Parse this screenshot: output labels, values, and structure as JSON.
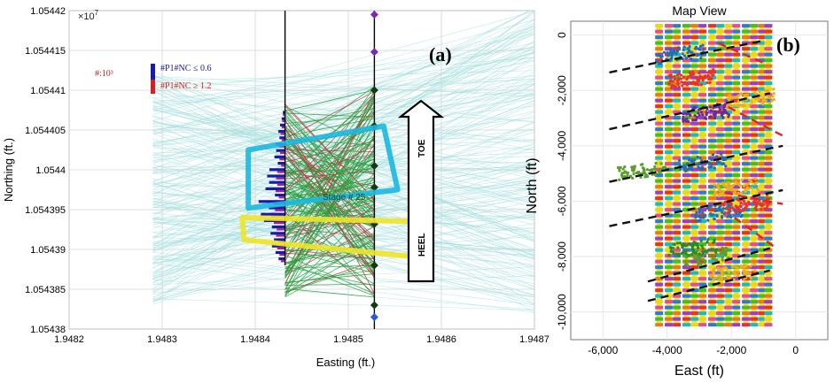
{
  "chart_data": [
    {
      "type": "scatter",
      "panel_label": "(a)",
      "title": "",
      "xlabel": "Easting (ft.)",
      "ylabel": "Northing (ft.)",
      "x_ticks": [
        "1.9482",
        "1.9483",
        "1.9484",
        "1.9485",
        "1.9486",
        "1.9487"
      ],
      "x_tick_values": [
        1.9482,
        1.9483,
        1.9484,
        1.9485,
        1.9486,
        1.9487
      ],
      "y_ticks": [
        "1.05438",
        "1.054385",
        "1.05439",
        "1.054395",
        "1.0544",
        "1.054405",
        "1.05441",
        "1.054415",
        "1.05442"
      ],
      "y_tick_values": [
        1.05438,
        1.054385,
        1.05439,
        1.054395,
        1.0544,
        1.054405,
        1.05441,
        1.054415,
        1.05442
      ],
      "xlim": [
        1.9482,
        1.9487
      ],
      "ylim": [
        1.05438,
        1.05442
      ],
      "axis_multiplier": "×10",
      "axis_multiplier_exp": "7",
      "scale_note": "#:10³",
      "legend": [
        {
          "label": "#P1#NC ≤ 0.6",
          "color": "#1a1aa8"
        },
        {
          "label": "#P1#NC ≥ 1.2",
          "color": "#d42020"
        }
      ],
      "annotations": {
        "stage": "Stage # 25",
        "toe": "TOE",
        "heel": "HEEL"
      },
      "wellbore": {
        "monitor_easting": 1.948432,
        "treatment_easting": 1.948528,
        "stage_points": [
          {
            "northing": 1.0544195,
            "style": "diamond-purple"
          },
          {
            "northing": 1.0544148,
            "style": "diamond-purple"
          },
          {
            "northing": 1.05441,
            "style": "diamond-green"
          },
          {
            "northing": 1.0544055,
            "style": "diamond-green"
          },
          {
            "northing": 1.0544005,
            "style": "diamond-green"
          },
          {
            "northing": 1.0543978,
            "style": "diamond-green"
          },
          {
            "northing": 1.0543932,
            "style": "diamond-green"
          },
          {
            "northing": 1.054388,
            "style": "diamond-green"
          },
          {
            "northing": 1.054383,
            "style": "diamond-green"
          },
          {
            "northing": 1.0543815,
            "style": "diamond-blue"
          }
        ]
      },
      "histogram": {
        "bin_centers": [
          1.0543886,
          1.0543894,
          1.0543902,
          1.054391,
          1.0543918,
          1.0543926,
          1.0543934,
          1.0543942,
          1.054395,
          1.0543958,
          1.0543966,
          1.0543974,
          1.0543982,
          1.054399,
          1.0543998,
          1.0544006,
          1.0544014,
          1.0544022,
          1.054403,
          1.0544038,
          1.0544046,
          1.0544054,
          1.0544062,
          1.054407
        ],
        "low_nc_lengths": [
          6.9e-06,
          1.02e-05,
          1.41e-05,
          1.19e-05,
          1.56e-05,
          1.41e-05,
          2.25e-05,
          2.6e-05,
          1.74e-05,
          2.84e-05,
          1.08e-05,
          2.1e-05,
          1.71e-05,
          1.92e-05,
          1.68e-05,
          7.8e-06,
          1.14e-05,
          9.6e-06,
          1.02e-05,
          6e-06,
          7.2e-06,
          5.4e-06,
          3.6e-06,
          2.4e-06
        ],
        "high_nc_lengths": [
          4.5e-06,
          6e-06,
          8.4e-06,
          7.2e-06,
          9.6e-06,
          9e-06,
          1.2e-05,
          1.5e-05,
          1.08e-05,
          1.35e-05,
          6.6e-06,
          1.02e-05,
          8.4e-06,
          9.6e-06,
          8.4e-06,
          4.2e-06,
          6e-06,
          5.4e-06,
          6.6e-06,
          3.6e-06,
          4.8e-06,
          3.6e-06,
          3e-06,
          2.4e-06
        ]
      },
      "regions": [
        {
          "name": "cyan-box",
          "color": "#1ab8e0",
          "corners": [
            [
              1.9483925,
              1.0544025
            ],
            [
              1.948538,
              1.0544055
            ],
            [
              1.948553,
              1.0543975
            ],
            [
              1.9483925,
              1.0543952
            ]
          ]
        },
        {
          "name": "yellow-box",
          "color": "#f0e426",
          "corners": [
            [
              1.948386,
              1.054394
            ],
            [
              1.948578,
              1.0543935
            ],
            [
              1.948578,
              1.054389
            ],
            [
              1.948388,
              1.0543912
            ]
          ]
        }
      ]
    },
    {
      "type": "scatter",
      "panel_label": "(b)",
      "title": "Map View",
      "xlabel": "East (ft)",
      "ylabel": "North (ft)",
      "x_ticks": [
        "-6,000",
        "-4,000",
        "-2,000",
        "0"
      ],
      "x_tick_values": [
        -6000,
        -4000,
        -2000,
        0
      ],
      "y_ticks": [
        "0",
        "-2,000",
        "-4,000",
        "-6,000",
        "-8,000",
        "-10,000"
      ],
      "y_tick_values": [
        0,
        -2000,
        -4000,
        -6000,
        -8000,
        -10000
      ],
      "xlim": [
        -7000,
        1000
      ],
      "ylim": [
        -11000,
        500
      ],
      "well_eastings": [
        -4250,
        -3950,
        -3700,
        -3400,
        -3150,
        -2900,
        -2600,
        -2350,
        -2100,
        -1850,
        -1550,
        -1300,
        -1050,
        -850
      ],
      "well_north_range": [
        -10400,
        400
      ],
      "reference_lines_black": [
        [
          [
            -5800,
            -1350
          ],
          [
            -1000,
            -200
          ]
        ],
        [
          [
            -5800,
            -3400
          ],
          [
            -800,
            -2100
          ]
        ],
        [
          [
            -5800,
            -5300
          ],
          [
            -400,
            -4000
          ]
        ],
        [
          [
            -5800,
            -6900
          ],
          [
            -400,
            -5600
          ]
        ],
        [
          [
            -4600,
            -8900
          ],
          [
            -800,
            -7700
          ]
        ],
        [
          [
            -4600,
            -9600
          ],
          [
            -800,
            -8500
          ]
        ]
      ],
      "reference_lines_red": [
        [
          [
            -2400,
            -300
          ],
          [
            -1000,
            -1000
          ]
        ],
        [
          [
            -2100,
            -2600
          ],
          [
            -300,
            -3700
          ]
        ],
        [
          [
            -2200,
            -5700
          ],
          [
            -400,
            -6100
          ]
        ],
        [
          [
            -1900,
            -6600
          ],
          [
            -600,
            -7700
          ]
        ]
      ],
      "clusters": [
        {
          "color": "#1f6fb8",
          "east": -3600,
          "north": -700
        },
        {
          "color": "#e83030",
          "east": -3300,
          "north": -1600
        },
        {
          "color": "#e8b020",
          "east": -1400,
          "north": -2300
        },
        {
          "color": "#6a2aa0",
          "east": -2800,
          "north": -2800
        },
        {
          "color": "#1f6fb8",
          "east": -2900,
          "north": -4600
        },
        {
          "color": "#5aa02a",
          "east": -4800,
          "north": -4900
        },
        {
          "color": "#e8b020",
          "east": -1800,
          "north": -5500
        },
        {
          "color": "#1f6fb8",
          "east": -2400,
          "north": -6400
        },
        {
          "color": "#e83030",
          "east": -1500,
          "north": -6100
        },
        {
          "color": "#5aa02a",
          "east": -2800,
          "north": -8000
        },
        {
          "color": "#e8b020",
          "east": -2000,
          "north": -8600
        },
        {
          "color": "#2a8a2a",
          "east": -3200,
          "north": -7700
        }
      ]
    }
  ]
}
